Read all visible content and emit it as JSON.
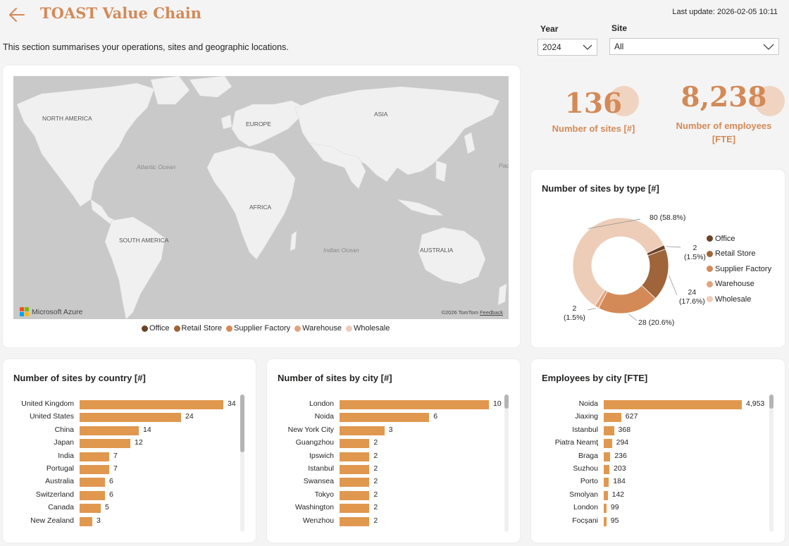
{
  "header": {
    "title": "TOAST Value Chain",
    "subtitle": "This section summarises your operations, sites and geographic locations.",
    "last_update": "Last update: 2026-02-05 10:11"
  },
  "filters": {
    "year_label": "Year",
    "year_value": "2024",
    "site_label": "Site",
    "site_value": "All"
  },
  "map": {
    "continents": [
      "NORTH AMERICA",
      "EUROPE",
      "ASIA",
      "AFRICA",
      "SOUTH AMERICA",
      "AUSTRALIA"
    ],
    "oceans": [
      "Atlantic Ocean",
      "Indian Ocean",
      "Pac"
    ],
    "provider": "Microsoft Azure",
    "copyright": "©2026 TomTom",
    "feedback": "Feedback",
    "legend": [
      {
        "label": "Office",
        "color": "#6b4226"
      },
      {
        "label": "Retail Store",
        "color": "#a0643a"
      },
      {
        "label": "Supplier Factory",
        "color": "#d38a57"
      },
      {
        "label": "Warehouse",
        "color": "#e1a37d"
      },
      {
        "label": "Wholesale",
        "color": "#edcdb8"
      }
    ]
  },
  "kpis": {
    "sites_value": "136",
    "sites_label": "Number of sites [#]",
    "employees_value": "8,238",
    "employees_label": "Number of employees [FTE]"
  },
  "chart_data": [
    {
      "type": "pie",
      "title": "Number of sites by type [#]",
      "categories": [
        "Office",
        "Retail Store",
        "Supplier Factory",
        "Warehouse",
        "Wholesale"
      ],
      "values": [
        2,
        24,
        28,
        2,
        80
      ],
      "labels": [
        "2 (1.5%)",
        "24 (17.6%)",
        "28 (20.6%)",
        "2 (1.5%)",
        "80 (58.8%)"
      ],
      "colors": [
        "#6b4226",
        "#a0643a",
        "#d38a57",
        "#e1a37d",
        "#edcdb8"
      ],
      "legend": "right"
    },
    {
      "type": "bar",
      "title": "Number of sites by country [#]",
      "categories": [
        "United Kingdom",
        "United States",
        "China",
        "Japan",
        "India",
        "Portugal",
        "Australia",
        "Switzerland",
        "Canada",
        "New Zealand"
      ],
      "values": [
        34,
        24,
        14,
        12,
        7,
        7,
        6,
        6,
        5,
        3
      ]
    },
    {
      "type": "bar",
      "title": "Number of sites by city [#]",
      "categories": [
        "London",
        "Noida",
        "New York City",
        "Guangzhou",
        "Ipswich",
        "Istanbul",
        "Swansea",
        "Tokyo",
        "Washington",
        "Wenzhou"
      ],
      "values": [
        10,
        6,
        3,
        2,
        2,
        2,
        2,
        2,
        2,
        2
      ]
    },
    {
      "type": "bar",
      "title": "Employees by city [FTE]",
      "categories": [
        "Noida",
        "Jiaxing",
        "Istanbul",
        "Piatra Neamţ",
        "Braga",
        "Suzhou",
        "Porto",
        "Smolyan",
        "London",
        "Focşani"
      ],
      "values": [
        4953,
        627,
        368,
        294,
        236,
        203,
        184,
        142,
        99,
        95
      ],
      "value_labels": [
        "4,953",
        "627",
        "368",
        "294",
        "236",
        "203",
        "184",
        "142",
        "99",
        "95"
      ]
    }
  ]
}
